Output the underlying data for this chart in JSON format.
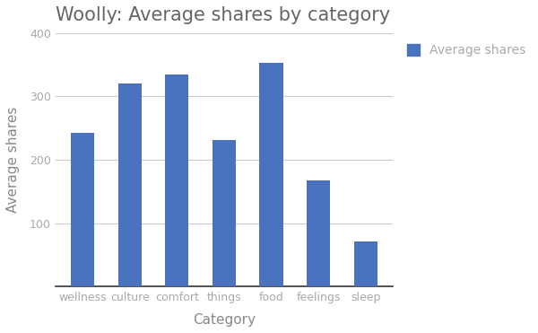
{
  "title": "Woolly: Average shares by category",
  "categories": [
    "wellness",
    "culture",
    "comfort",
    "things",
    "food",
    "feelings",
    "sleep"
  ],
  "values": [
    243,
    320,
    335,
    232,
    353,
    168,
    72
  ],
  "bar_color": "#4B72BE",
  "xlabel": "Category",
  "ylabel": "Average shares",
  "ylim": [
    0,
    400
  ],
  "yticks": [
    0,
    100,
    200,
    300,
    400
  ],
  "legend_label": "Average shares",
  "title_fontsize": 15,
  "axis_label_fontsize": 11,
  "tick_fontsize": 9,
  "legend_fontsize": 10,
  "background_color": "#ffffff",
  "grid_color": "#cccccc",
  "title_color": "#666666",
  "axis_label_color": "#888888",
  "tick_color": "#aaaaaa",
  "bottom_spine_color": "#333333"
}
